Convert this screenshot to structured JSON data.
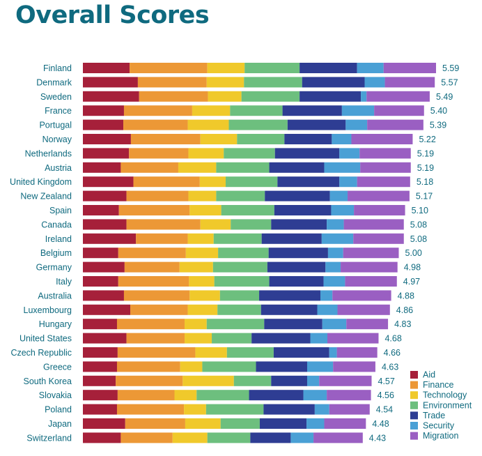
{
  "chart_data": {
    "type": "bar",
    "orientation": "horizontal",
    "stacked": true,
    "title": "Overall Scores",
    "xlabel": "",
    "ylabel": "",
    "grid": false,
    "legend_position": "bottom-right",
    "categories": [
      "Finland",
      "Denmark",
      "Sweden",
      "France",
      "Portugal",
      "Norway",
      "Netherlands",
      "Austria",
      "United Kingdom",
      "New Zealand",
      "Spain",
      "Canada",
      "Ireland",
      "Belgium",
      "Germany",
      "Italy",
      "Australia",
      "Luxembourg",
      "Hungary",
      "United States",
      "Czech Republic",
      "Greece",
      "South Korea",
      "Slovakia",
      "Poland",
      "Japan",
      "Switzerland"
    ],
    "totals": [
      "5.59",
      "5.57",
      "5.49",
      "5.40",
      "5.39",
      "5.22",
      "5.19",
      "5.19",
      "5.18",
      "5.17",
      "5.10",
      "5.08",
      "5.08",
      "5.00",
      "4.98",
      "4.97",
      "4.88",
      "4.86",
      "4.83",
      "4.68",
      "4.66",
      "4.63",
      "4.57",
      "4.56",
      "4.54",
      "4.48",
      "4.43"
    ],
    "series": [
      {
        "name": "Aid",
        "color": "#a6203a",
        "values": [
          0.74,
          0.87,
          0.89,
          0.65,
          0.64,
          0.76,
          0.73,
          0.6,
          0.8,
          0.69,
          0.57,
          0.69,
          0.84,
          0.56,
          0.66,
          0.56,
          0.65,
          0.75,
          0.54,
          0.69,
          0.55,
          0.54,
          0.52,
          0.55,
          0.54,
          0.67,
          0.6
        ]
      },
      {
        "name": "Finance",
        "color": "#ec9836",
        "values": [
          1.23,
          1.09,
          1.09,
          1.08,
          1.02,
          1.1,
          0.94,
          0.91,
          1.05,
          0.98,
          1.12,
          1.17,
          0.82,
          1.07,
          0.87,
          1.12,
          1.04,
          0.91,
          1.07,
          0.92,
          1.23,
          1.0,
          1.06,
          0.9,
          1.06,
          0.95,
          0.82
        ]
      },
      {
        "name": "Technology",
        "color": "#f0c92b",
        "values": [
          0.59,
          0.59,
          0.53,
          0.6,
          0.65,
          0.58,
          0.56,
          0.6,
          0.41,
          0.44,
          0.5,
          0.48,
          0.41,
          0.51,
          0.53,
          0.4,
          0.48,
          0.47,
          0.35,
          0.43,
          0.5,
          0.35,
          0.81,
          0.35,
          0.35,
          0.56,
          0.55
        ]
      },
      {
        "name": "Environment",
        "color": "#6dbf7e",
        "values": [
          0.87,
          0.92,
          0.92,
          0.83,
          0.93,
          0.75,
          0.81,
          0.84,
          0.82,
          0.77,
          0.84,
          0.64,
          0.76,
          0.8,
          0.86,
          0.87,
          0.62,
          0.69,
          0.91,
          0.63,
          0.74,
          0.85,
          0.59,
          0.83,
          0.91,
          0.62,
          0.68
        ]
      },
      {
        "name": "Trade",
        "color": "#2e3d93",
        "values": [
          0.91,
          0.99,
          0.97,
          0.94,
          0.92,
          0.75,
          1.02,
          0.87,
          0.98,
          1.03,
          0.9,
          0.88,
          0.95,
          0.94,
          0.92,
          0.86,
          0.97,
          0.89,
          0.92,
          0.93,
          0.88,
          0.81,
          0.57,
          0.86,
          0.81,
          0.74,
          0.64
        ]
      },
      {
        "name": "Security",
        "color": "#4aa0d5",
        "values": [
          0.42,
          0.32,
          0.09,
          0.51,
          0.34,
          0.31,
          0.32,
          0.57,
          0.28,
          0.28,
          0.36,
          0.27,
          0.5,
          0.24,
          0.24,
          0.34,
          0.19,
          0.32,
          0.38,
          0.27,
          0.12,
          0.41,
          0.19,
          0.37,
          0.23,
          0.28,
          0.36
        ]
      },
      {
        "name": "Migration",
        "color": "#9a5fc2",
        "values": [
          0.83,
          0.79,
          1.0,
          0.79,
          0.89,
          0.97,
          0.81,
          0.8,
          0.84,
          0.98,
          0.81,
          0.95,
          0.8,
          0.88,
          0.9,
          0.82,
          0.93,
          0.83,
          0.66,
          0.81,
          0.64,
          0.67,
          0.83,
          0.7,
          0.64,
          0.66,
          0.78
        ]
      }
    ]
  }
}
